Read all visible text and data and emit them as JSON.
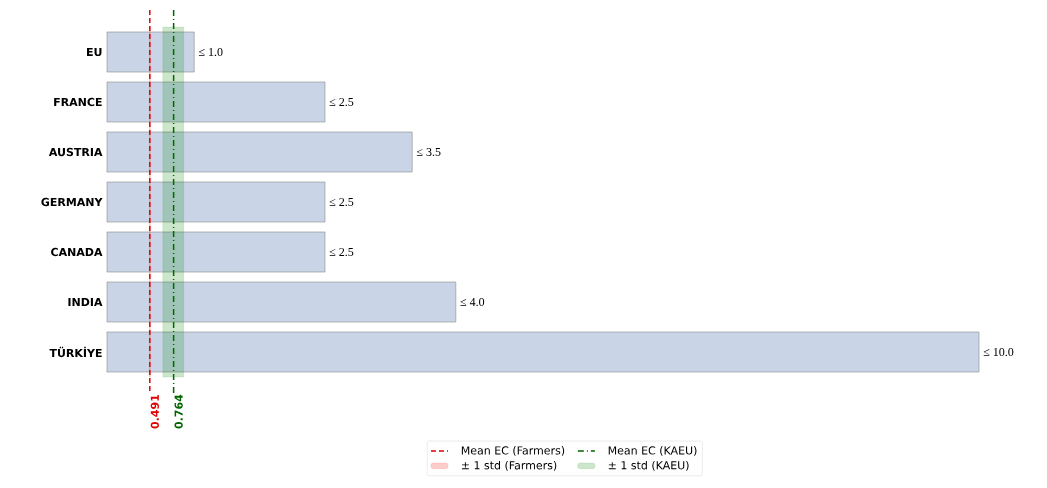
{
  "chart_data": {
    "type": "bar",
    "orientation": "horizontal",
    "categories": [
      "EU",
      "FRANCE",
      "AUSTRIA",
      "GERMANY",
      "CANADA",
      "INDIA",
      "TÜRKİYE"
    ],
    "values": [
      1.0,
      2.5,
      3.5,
      2.5,
      2.5,
      4.0,
      10.0
    ],
    "value_labels": [
      "≤ 1.0",
      "≤ 2.5",
      "≤ 3.5",
      "≤ 2.5",
      "≤ 2.5",
      "≤ 4.0",
      "≤ 10.0"
    ],
    "color": "#c9d5e6",
    "ref_lines": [
      {
        "axis": "x",
        "value": 0.491,
        "label": "Mean EC (Farmers)",
        "color": "#e00000",
        "line_style": "dashed"
      },
      {
        "axis": "x",
        "value": 0.764,
        "label": "Mean EC (KAEU)",
        "color": "#006400",
        "line_style": "dashdot"
      }
    ],
    "bands": [
      {
        "axis": "x",
        "from": 0.485,
        "to": 0.497,
        "label": "± 1 std (Farmers)",
        "color": "#ff0000"
      },
      {
        "axis": "x",
        "from": 0.64,
        "to": 0.88,
        "label": "± 1 std (KAEU)",
        "color": "#008000"
      }
    ],
    "annotations": [
      "0.491",
      "0.764"
    ],
    "legend": "bottom"
  }
}
